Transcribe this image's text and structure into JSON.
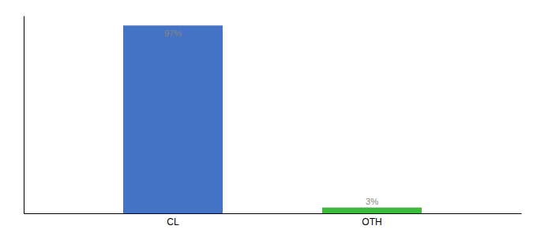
{
  "chart_data": {
    "type": "bar",
    "categories": [
      "CL",
      "OTH"
    ],
    "values": [
      97,
      3
    ],
    "colors": [
      "#4472c4",
      "#3dbb3d"
    ],
    "value_labels": [
      "97%",
      "3%"
    ],
    "ylim": [
      0,
      102
    ],
    "tick_labels": "x",
    "data_labels": true
  }
}
